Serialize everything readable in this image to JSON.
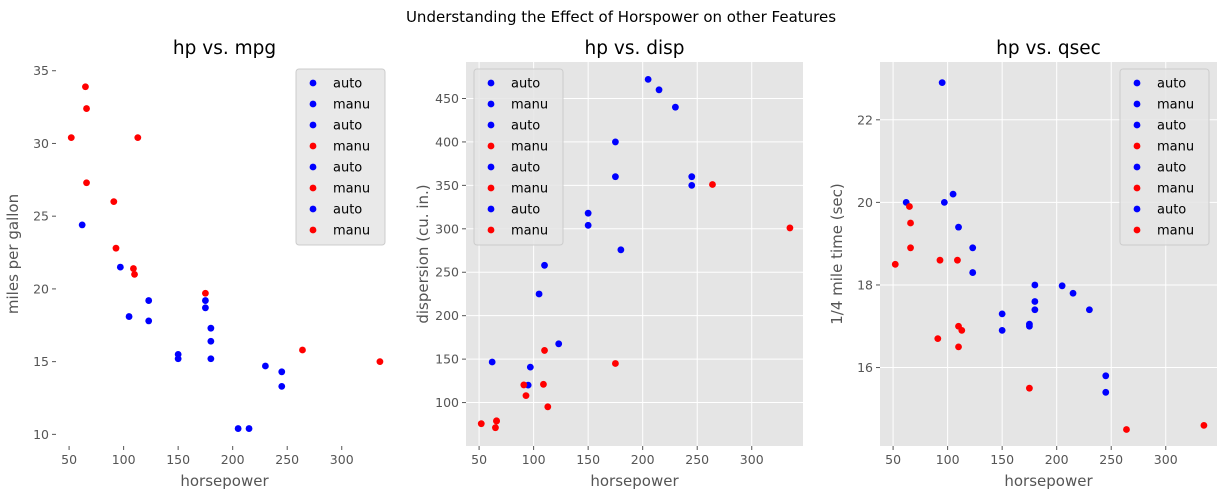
{
  "figure": {
    "suptitle": "Understanding the Effect of Horspower on other Features",
    "background": "#ffffff",
    "axes_face": "#e5e5e5",
    "grid_color": "#ffffff",
    "legend_face": "#e5e5e5",
    "legend_edge": "#cccccc"
  },
  "legend": {
    "labels": [
      "auto",
      "manu",
      "auto",
      "manu",
      "auto",
      "manu",
      "auto",
      "manu"
    ],
    "colors": [
      "#0000ff",
      "#0000ff",
      "#0000ff",
      "#ff0000",
      "#0000ff",
      "#ff0000",
      "#0000ff",
      "#ff0000"
    ]
  },
  "chart_data": [
    {
      "type": "scatter",
      "title": "hp vs. mpg",
      "xlabel": "horsepower",
      "ylabel": "miles per gallon",
      "xlim": [
        38,
        347
      ],
      "ylim": [
        9.2,
        35.6
      ],
      "xticks": [
        50,
        100,
        150,
        200,
        250,
        300
      ],
      "yticks": [
        10,
        15,
        20,
        25,
        30,
        35
      ],
      "grid": false,
      "legend_position": "upper right",
      "series": [
        {
          "name": "auto",
          "color": "#0000ff",
          "points": [
            [
              62,
              24.4
            ],
            [
              97,
              21.5
            ],
            [
              105,
              18.1
            ],
            [
              123,
              19.2
            ],
            [
              123,
              17.8
            ],
            [
              150,
              15.5
            ],
            [
              150,
              15.2
            ],
            [
              175,
              19.2
            ],
            [
              175,
              18.7
            ],
            [
              180,
              17.3
            ],
            [
              180,
              16.4
            ],
            [
              180,
              15.2
            ],
            [
              205,
              10.4
            ],
            [
              215,
              10.4
            ],
            [
              230,
              14.7
            ],
            [
              245,
              14.3
            ],
            [
              245,
              13.3
            ]
          ]
        },
        {
          "name": "manu",
          "color": "#ff0000",
          "points": [
            [
              52,
              30.4
            ],
            [
              65,
              33.9
            ],
            [
              66,
              32.4
            ],
            [
              66,
              27.3
            ],
            [
              91,
              26.0
            ],
            [
              93,
              22.8
            ],
            [
              109,
              21.4
            ],
            [
              110,
              21.0
            ],
            [
              113,
              30.4
            ],
            [
              175,
              19.7
            ],
            [
              264,
              15.8
            ],
            [
              335,
              15.0
            ]
          ]
        }
      ]
    },
    {
      "type": "scatter",
      "title": "hp vs. disp",
      "xlabel": "horsepower",
      "ylabel": "dispersion (cu. in.)",
      "xlim": [
        38,
        347
      ],
      "ylim": [
        50,
        492
      ],
      "xticks": [
        50,
        100,
        150,
        200,
        250,
        300
      ],
      "yticks": [
        100,
        150,
        200,
        250,
        300,
        350,
        400,
        450
      ],
      "grid": true,
      "legend_position": "upper left",
      "series": [
        {
          "name": "auto",
          "color": "#0000ff",
          "points": [
            [
              62,
              146.7
            ],
            [
              95,
              120.1
            ],
            [
              97,
              140.8
            ],
            [
              105,
              225.0
            ],
            [
              110,
              258.0
            ],
            [
              123,
              167.6
            ],
            [
              150,
              318.0
            ],
            [
              150,
              304.0
            ],
            [
              175,
              400.0
            ],
            [
              175,
              360.0
            ],
            [
              180,
              275.8
            ],
            [
              205,
              472.0
            ],
            [
              215,
              460.0
            ],
            [
              230,
              440.0
            ],
            [
              245,
              360.0
            ],
            [
              245,
              350.0
            ]
          ]
        },
        {
          "name": "manu",
          "color": "#ff0000",
          "points": [
            [
              52,
              75.7
            ],
            [
              65,
              71.1
            ],
            [
              66,
              78.7
            ],
            [
              66,
              79.0
            ],
            [
              91,
              120.3
            ],
            [
              93,
              108.0
            ],
            [
              109,
              121.0
            ],
            [
              110,
              160.0
            ],
            [
              113,
              95.1
            ],
            [
              175,
              145.0
            ],
            [
              264,
              351.0
            ],
            [
              335,
              301.0
            ]
          ]
        }
      ]
    },
    {
      "type": "scatter",
      "title": "hp vs. qsec",
      "xlabel": "horsepower",
      "ylabel": "1/4 mile time (sec)",
      "xlim": [
        38,
        347
      ],
      "ylim": [
        14.1,
        23.4
      ],
      "xticks": [
        50,
        100,
        150,
        200,
        250,
        300
      ],
      "yticks": [
        16,
        18,
        20,
        22
      ],
      "grid": true,
      "legend_position": "upper right",
      "series": [
        {
          "name": "auto",
          "color": "#0000ff",
          "points": [
            [
              62,
              20.0
            ],
            [
              95,
              22.9
            ],
            [
              97,
              20.0
            ],
            [
              105,
              20.2
            ],
            [
              110,
              19.4
            ],
            [
              123,
              18.9
            ],
            [
              123,
              18.3
            ],
            [
              150,
              17.3
            ],
            [
              150,
              16.9
            ],
            [
              175,
              17.0
            ],
            [
              175,
              17.05
            ],
            [
              180,
              18.0
            ],
            [
              180,
              17.6
            ],
            [
              180,
              17.4
            ],
            [
              205,
              17.98
            ],
            [
              215,
              17.8
            ],
            [
              230,
              17.4
            ],
            [
              245,
              15.8
            ],
            [
              245,
              15.4
            ]
          ]
        },
        {
          "name": "manu",
          "color": "#ff0000",
          "points": [
            [
              52,
              18.5
            ],
            [
              65,
              19.9
            ],
            [
              66,
              19.5
            ],
            [
              66,
              18.9
            ],
            [
              91,
              16.7
            ],
            [
              93,
              18.6
            ],
            [
              109,
              18.6
            ],
            [
              110,
              17.0
            ],
            [
              110,
              16.5
            ],
            [
              113,
              16.9
            ],
            [
              175,
              15.5
            ],
            [
              264,
              14.5
            ],
            [
              335,
              14.6
            ]
          ]
        }
      ]
    }
  ]
}
